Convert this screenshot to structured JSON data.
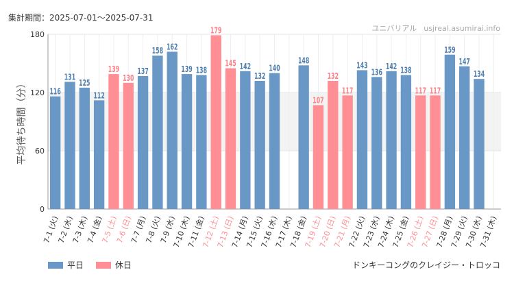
{
  "header": {
    "period": "集計期間：2025-07-01〜2025-07-31",
    "site_name": "ユニバリアル",
    "site_url": "usjreal.asumirai.info"
  },
  "legend": {
    "weekday": "平日",
    "holiday": "休日"
  },
  "attraction": "ドンキーコングのクレイジー・トロッコ",
  "colors": {
    "weekday": "#6a98c6",
    "holiday": "#ff8f95",
    "holiday_label": "#ff7f86",
    "weekday_label": "#4f7fae",
    "band": "#f3f3f3"
  },
  "chart_data": {
    "type": "bar",
    "ylabel": "平均待ち時間（分）",
    "ylim": [
      0,
      180
    ],
    "yticks": [
      0,
      60,
      120,
      180
    ],
    "shaded_band": [
      60,
      120
    ],
    "categories": [
      "7-1 (火)",
      "7-2 (水)",
      "7-3 (木)",
      "7-4 (金)",
      "7-5 (土)",
      "7-6 (日)",
      "7-7 (月)",
      "7-8 (火)",
      "7-9 (水)",
      "7-10 (木)",
      "7-11 (金)",
      "7-12 (土)",
      "7-13 (日)",
      "7-14 (月)",
      "7-15 (火)",
      "7-16 (水)",
      "7-17 (木)",
      "7-18 (金)",
      "7-19 (土)",
      "7-20 (日)",
      "7-21 (月)",
      "7-22 (火)",
      "7-23 (水)",
      "7-24 (木)",
      "7-25 (金)",
      "7-26 (土)",
      "7-27 (日)",
      "7-28 (月)",
      "7-29 (火)",
      "7-30 (水)",
      "7-31 (木)"
    ],
    "values": [
      116,
      131,
      125,
      112,
      139,
      130,
      137,
      158,
      162,
      139,
      138,
      179,
      145,
      142,
      132,
      140,
      null,
      148,
      107,
      132,
      117,
      143,
      136,
      142,
      138,
      117,
      117,
      159,
      147,
      134,
      null
    ],
    "holiday": [
      false,
      false,
      false,
      false,
      true,
      true,
      false,
      false,
      false,
      false,
      false,
      true,
      true,
      false,
      false,
      false,
      false,
      false,
      true,
      true,
      true,
      false,
      false,
      false,
      false,
      true,
      true,
      false,
      false,
      false,
      false
    ]
  }
}
